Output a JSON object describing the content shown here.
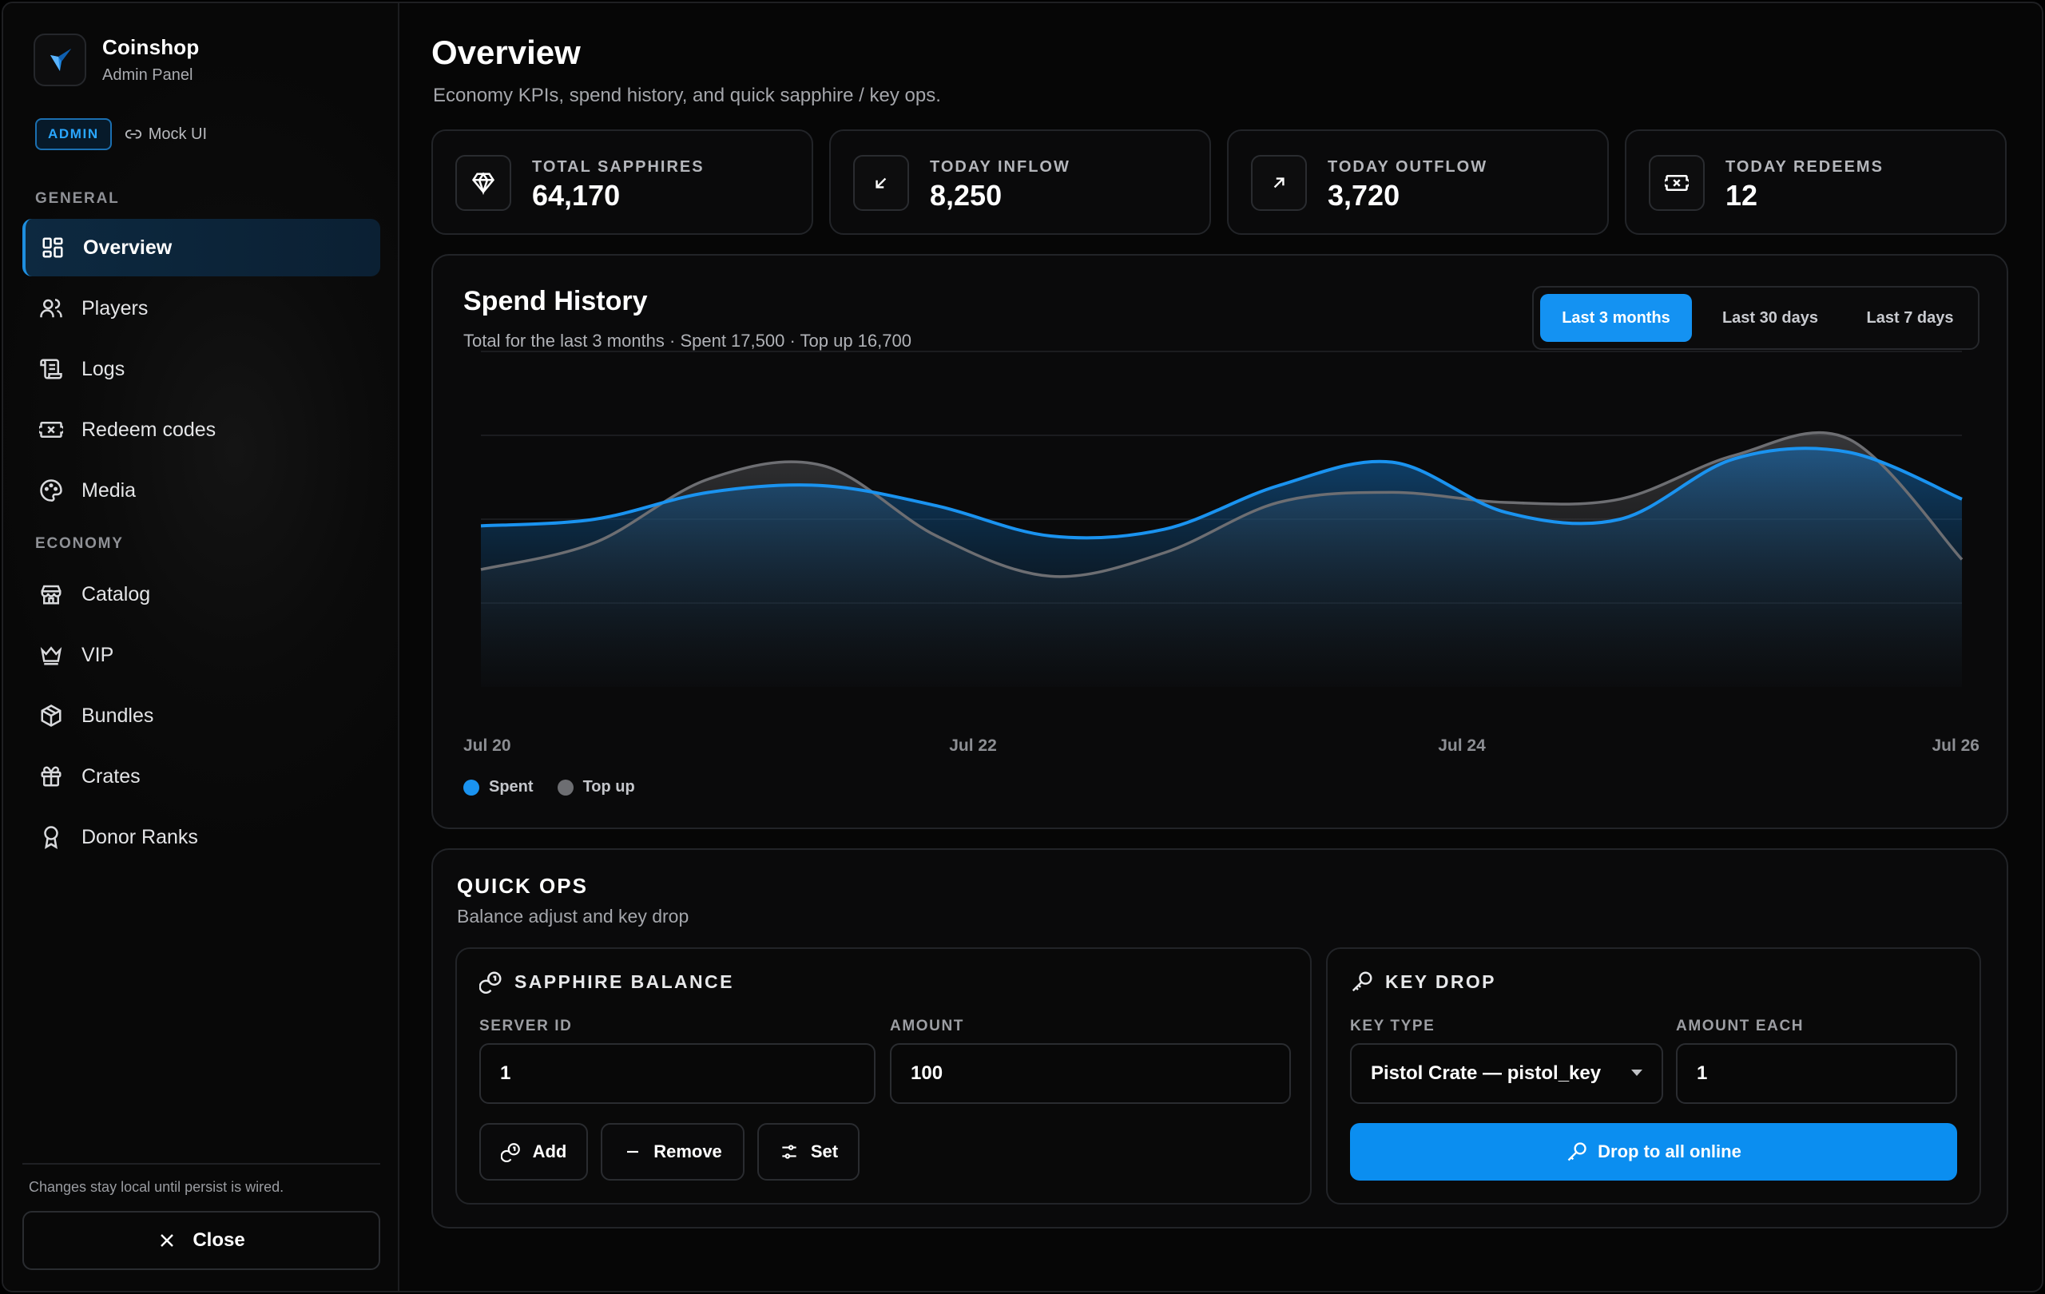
{
  "brand": {
    "name": "Coinshop",
    "subtitle": "Admin Panel",
    "badge": "ADMIN",
    "mock_label": "Mock UI"
  },
  "sidebar": {
    "sections": [
      {
        "label": "GENERAL"
      },
      {
        "label": "ECONOMY"
      }
    ],
    "items": [
      {
        "label": "Overview",
        "icon": "grid-icon",
        "active": true
      },
      {
        "label": "Players",
        "icon": "users-icon"
      },
      {
        "label": "Logs",
        "icon": "scroll-icon"
      },
      {
        "label": "Redeem codes",
        "icon": "ticket-icon"
      },
      {
        "label": "Media",
        "icon": "palette-icon"
      },
      {
        "label": "Catalog",
        "icon": "store-icon"
      },
      {
        "label": "VIP",
        "icon": "crown-icon"
      },
      {
        "label": "Bundles",
        "icon": "box-icon"
      },
      {
        "label": "Crates",
        "icon": "gift-icon"
      },
      {
        "label": "Donor Ranks",
        "icon": "award-icon"
      }
    ],
    "footer_note": "Changes stay local until persist is wired.",
    "close_label": "Close"
  },
  "header": {
    "title": "Overview",
    "subtitle": "Economy KPIs, spend history, and quick sapphire / key ops."
  },
  "kpis": [
    {
      "label": "TOTAL SAPPHIRES",
      "value": "64,170",
      "icon": "gem-icon"
    },
    {
      "label": "TODAY INFLOW",
      "value": "8,250",
      "icon": "arrow-down-left-icon"
    },
    {
      "label": "TODAY OUTFLOW",
      "value": "3,720",
      "icon": "arrow-up-right-icon"
    },
    {
      "label": "TODAY REDEEMS",
      "value": "12",
      "icon": "ticket-icon"
    }
  ],
  "spend_history": {
    "title": "Spend History",
    "subtitle": "Total for the last 3 months · Spent 17,500 · Top up 16,700",
    "ranges": [
      "Last 3 months",
      "Last 30 days",
      "Last 7 days"
    ],
    "active_range": "Last 3 months"
  },
  "chart_data": {
    "type": "area",
    "title": "Spend History",
    "x_ticks": [
      "Jul 20",
      "Jul 22",
      "Jul 24",
      "Jul 26"
    ],
    "x": [
      0,
      0.5,
      1,
      1.5,
      2,
      2.5,
      3,
      3.5,
      4,
      4.5,
      5,
      5.5,
      6,
      6.5
    ],
    "series": [
      {
        "name": "Spent",
        "color": "#1a93f0",
        "values": [
          48,
          50,
          58,
          60,
          54,
          45,
          47,
          60,
          67,
          52,
          50,
          68,
          70,
          56
        ]
      },
      {
        "name": "Top up",
        "color": "#6d6e72",
        "values": [
          35,
          43,
          62,
          66,
          45,
          33,
          40,
          55,
          58,
          55,
          56,
          69,
          74,
          38
        ]
      }
    ],
    "ylim": [
      0,
      100
    ],
    "grid": true,
    "legend": "bottom-left"
  },
  "quick_ops": {
    "title": "QUICK OPS",
    "subtitle": "Balance adjust and key drop",
    "sapphire": {
      "title": "SAPPHIRE BALANCE",
      "server_label": "SERVER ID",
      "server_value": "1",
      "amount_label": "AMOUNT",
      "amount_value": "100",
      "add": "Add",
      "remove": "Remove",
      "set": "Set"
    },
    "keydrop": {
      "title": "KEY DROP",
      "type_label": "KEY TYPE",
      "type_value": "Pistol Crate — pistol_key",
      "each_label": "AMOUNT EACH",
      "each_value": "1",
      "drop": "Drop to all online"
    }
  },
  "colors": {
    "accent": "#1492f2",
    "background": "#060606",
    "card": "#0a0a0b"
  }
}
